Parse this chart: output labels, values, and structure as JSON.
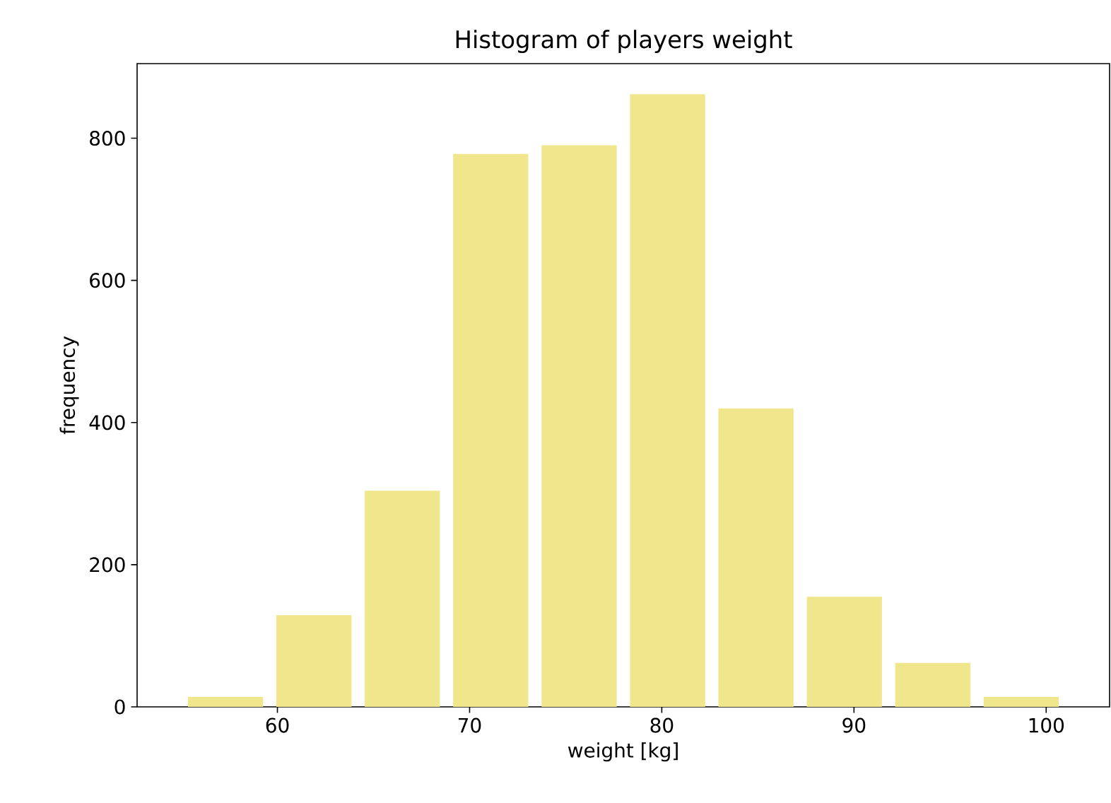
{
  "chart_data": {
    "type": "histogram",
    "title": "Histogram of players weight",
    "xlabel": "weight [kg]",
    "ylabel": "frequency",
    "bins": [
      55,
      59.6,
      64.2,
      68.8,
      73.4,
      78,
      82.6,
      87.2,
      91.8,
      96.4,
      101
    ],
    "values": [
      14,
      129,
      304,
      778,
      790,
      862,
      420,
      155,
      62,
      14
    ],
    "color": "#f0e68c",
    "xlim": [
      52.7,
      103.3
    ],
    "ylim": [
      0,
      905
    ],
    "xticks": [
      60,
      70,
      80,
      90,
      100
    ],
    "yticks": [
      0,
      200,
      400,
      600,
      800
    ]
  }
}
